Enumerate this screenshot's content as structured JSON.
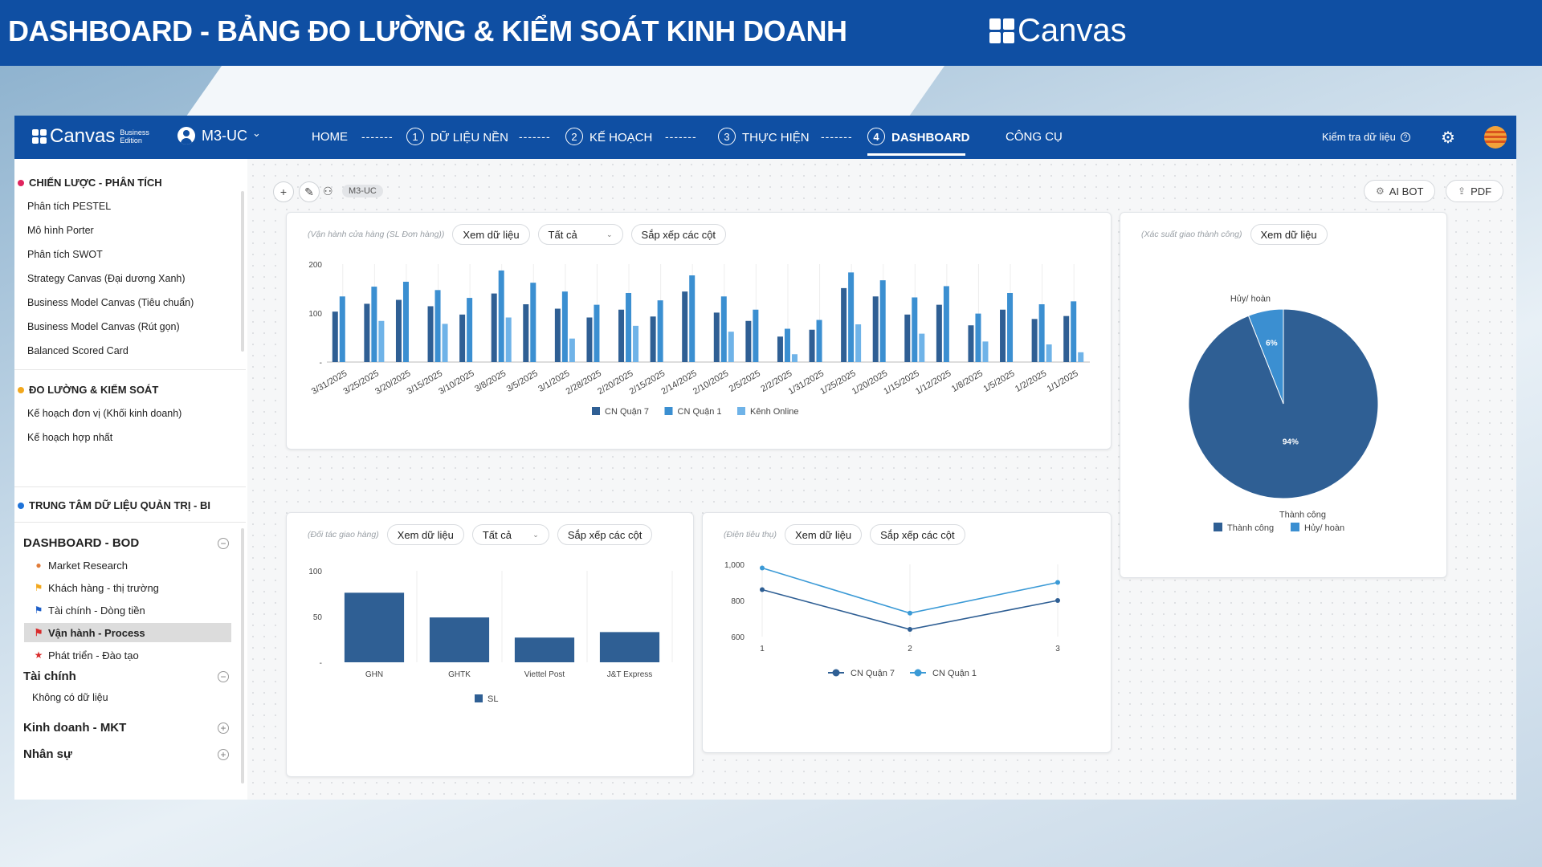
{
  "banner": {
    "title": "DASHBOARD - BẢNG ĐO LƯỜNG & KIỂM SOÁT KINH DOANH",
    "logo_text": "Canvas"
  },
  "topnav": {
    "brand": "Canvas",
    "edition_line1": "Business",
    "edition_line2": "Edition",
    "user": "M3-UC",
    "user_chevron": "⌄",
    "home": "HOME",
    "separator": "-------",
    "steps": [
      {
        "num": "1",
        "label": "DỮ LIỆU NỀN"
      },
      {
        "num": "2",
        "label": "KẾ HOẠCH"
      },
      {
        "num": "3",
        "label": "THỰC HIỆN"
      },
      {
        "num": "4",
        "label": "DASHBOARD"
      }
    ],
    "tools": "CÔNG CỤ",
    "check_data": "Kiểm tra dữ liệu",
    "help_glyph": "?",
    "icons": {
      "settings": "gear-icon",
      "language": "flag-icon",
      "user": "user-icon"
    }
  },
  "sidebar": {
    "group1": {
      "title": "CHIẾN LƯỢC - PHÂN TÍCH",
      "color": "#e0245e",
      "items": [
        "Phân tích PESTEL",
        "Mô hình Porter",
        "Phân tích SWOT",
        "Strategy Canvas (Đại dương Xanh)",
        "Business Model Canvas (Tiêu chuẩn)",
        "Business Model Canvas (Rút gọn)",
        "Balanced Scored Card"
      ]
    },
    "group2": {
      "title": "ĐO LƯỜNG & KIỂM SOÁT",
      "color": "#f2a81d",
      "items": [
        "Kế hoạch đơn vị (Khối kinh doanh)",
        "Kế hoạch hợp nhất"
      ]
    },
    "group3": {
      "title": "TRUNG TÂM DỮ LIỆU QUẢN TRỊ - BI",
      "color": "#1e73d9"
    },
    "bod": {
      "title": "DASHBOARD - BOD",
      "toggle": "−",
      "items": [
        {
          "label": "Market Research",
          "icon": "globe-icon",
          "glyph": "●",
          "color": "#e07b39"
        },
        {
          "label": "Khách hàng - thị trường",
          "icon": "flag-icon",
          "glyph": "⚑",
          "color": "#f2a81d"
        },
        {
          "label": "Tài chính - Dòng tiền",
          "icon": "flag-icon",
          "glyph": "⚑",
          "color": "#1e5fc8"
        },
        {
          "label": "Vận hành - Process",
          "icon": "flag-icon",
          "glyph": "⚑",
          "color": "#d92c2c",
          "active": true
        },
        {
          "label": "Phát triển - Đào tạo",
          "icon": "star-icon",
          "glyph": "★",
          "color": "#d92c2c"
        }
      ]
    },
    "finance": {
      "title": "Tài chính",
      "toggle": "−",
      "empty": "Không có dữ liệu"
    },
    "sales": {
      "title": "Kinh doanh - MKT",
      "toggle": "+"
    },
    "hr": {
      "title": "Nhân sự",
      "toggle": "+"
    }
  },
  "toolbar": {
    "add_glyph": "+",
    "edit_glyph": "✎",
    "people_glyph": "⚇",
    "tag": "M3-UC",
    "ai_bot": "AI BOT",
    "ai_glyph": "⚙",
    "pdf": "PDF",
    "pdf_glyph": "⇪"
  },
  "cards": {
    "ops": {
      "caption": "(Vận hành cửa hàng (SL Đơn hàng))",
      "view": "Xem dữ liệu",
      "filter": "Tất cả",
      "sort": "Sắp xếp các cột",
      "chevron": "⌄"
    },
    "pie": {
      "caption": "(Xác suất giao thành công)",
      "view": "Xem dữ liệu"
    },
    "partner": {
      "caption": "(Đối tác giao hàng)",
      "view": "Xem dữ liệu",
      "filter": "Tất cả",
      "sort": "Sắp xếp các cột",
      "chevron": "⌄"
    },
    "power": {
      "caption": "(Điện tiêu thụ)",
      "view": "Xem dữ liệu",
      "sort": "Sắp xếp các cột"
    }
  },
  "chart_data": [
    {
      "type": "bar",
      "categories": [
        "3/31/2025",
        "3/25/2025",
        "3/20/2025",
        "3/15/2025",
        "3/10/2025",
        "3/8/2025",
        "3/5/2025",
        "3/1/2025",
        "2/28/2025",
        "2/20/2025",
        "2/15/2025",
        "2/14/2025",
        "2/10/2025",
        "2/5/2025",
        "2/2/2025",
        "1/31/2025",
        "1/25/2025",
        "1/20/2025",
        "1/15/2025",
        "1/12/2025",
        "1/8/2025",
        "1/5/2025",
        "1/2/2025",
        "1/1/2025"
      ],
      "series": [
        {
          "name": "CN Quận 7",
          "color": "#2f5f94",
          "values": [
            103,
            119,
            127,
            114,
            97,
            140,
            118,
            109,
            91,
            107,
            93,
            144,
            101,
            84,
            52,
            66,
            151,
            134,
            97,
            117,
            75,
            107,
            88,
            94
          ]
        },
        {
          "name": "CN Quận 1",
          "color": "#3b8fd1",
          "values": [
            134,
            154,
            164,
            147,
            131,
            187,
            162,
            144,
            117,
            141,
            126,
            177,
            134,
            107,
            68,
            86,
            183,
            167,
            132,
            155,
            99,
            141,
            118,
            124
          ]
        },
        {
          "name": "Kênh Online",
          "color": "#6fb3e8",
          "values": [
            0,
            84,
            0,
            78,
            0,
            91,
            0,
            48,
            0,
            74,
            0,
            0,
            62,
            0,
            16,
            0,
            77,
            0,
            58,
            0,
            42,
            0,
            36,
            20
          ]
        }
      ],
      "ylim": [
        0,
        200
      ],
      "yticks": [
        "200",
        "100",
        "-"
      ],
      "legend": "bottom"
    },
    {
      "type": "pie",
      "slices": [
        {
          "label": "Thành công",
          "value": 94,
          "text": "94%",
          "color": "#2f5f94"
        },
        {
          "label": "Hủy/ hoàn",
          "value": 6,
          "text": "6%",
          "color": "#3b8fd1"
        }
      ],
      "legend": "bottom"
    },
    {
      "type": "bar",
      "categories": [
        "GHN",
        "GHTK",
        "Viettel Post",
        "J&T Express"
      ],
      "series": [
        {
          "name": "SL",
          "color": "#2f5f94",
          "values": [
            76,
            49,
            27,
            33
          ]
        }
      ],
      "ylim": [
        0,
        100
      ],
      "yticks": [
        "100",
        "50",
        "-"
      ],
      "legend": "bottom"
    },
    {
      "type": "line",
      "x": [
        "1",
        "2",
        "3"
      ],
      "series": [
        {
          "name": "CN Quận 7",
          "color": "#2f5f94",
          "values": [
            860,
            640,
            800
          ]
        },
        {
          "name": "CN Quận 1",
          "color": "#3b9ad6",
          "values": [
            980,
            730,
            900
          ]
        }
      ],
      "ylim": [
        600,
        1000
      ],
      "yticks": [
        "1,000",
        "800",
        "600"
      ],
      "legend": "bottom"
    }
  ]
}
